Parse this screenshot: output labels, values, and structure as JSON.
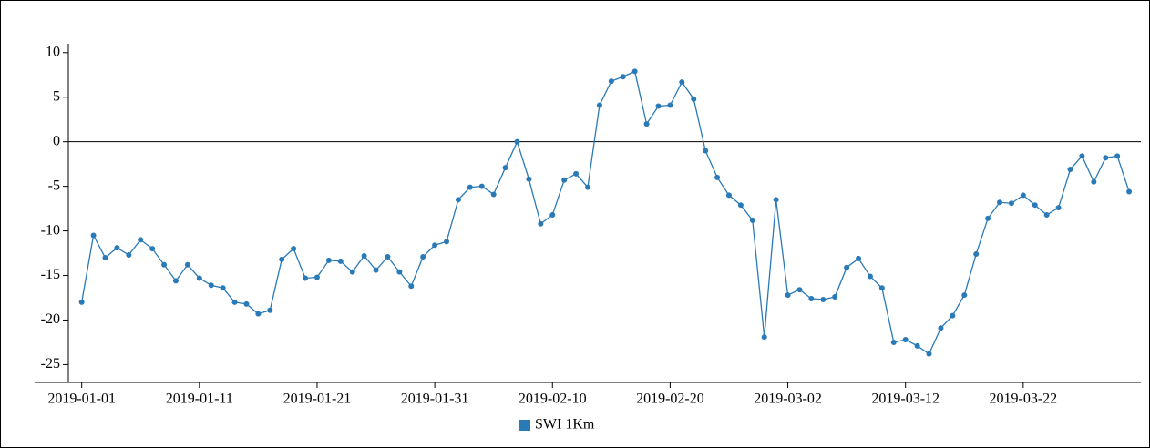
{
  "chart_data": {
    "type": "line",
    "x": [
      "2019-01-01",
      "2019-01-02",
      "2019-01-03",
      "2019-01-04",
      "2019-01-05",
      "2019-01-06",
      "2019-01-07",
      "2019-01-08",
      "2019-01-09",
      "2019-01-10",
      "2019-01-11",
      "2019-01-12",
      "2019-01-13",
      "2019-01-14",
      "2019-01-15",
      "2019-01-16",
      "2019-01-17",
      "2019-01-18",
      "2019-01-19",
      "2019-01-20",
      "2019-01-21",
      "2019-01-22",
      "2019-01-23",
      "2019-01-24",
      "2019-01-25",
      "2019-01-26",
      "2019-01-27",
      "2019-01-28",
      "2019-01-29",
      "2019-01-30",
      "2019-01-31",
      "2019-02-01",
      "2019-02-02",
      "2019-02-03",
      "2019-02-04",
      "2019-02-05",
      "2019-02-06",
      "2019-02-07",
      "2019-02-08",
      "2019-02-09",
      "2019-02-10",
      "2019-02-11",
      "2019-02-12",
      "2019-02-13",
      "2019-02-14",
      "2019-02-15",
      "2019-02-16",
      "2019-02-17",
      "2019-02-18",
      "2019-02-19",
      "2019-02-20",
      "2019-02-21",
      "2019-02-22",
      "2019-02-23",
      "2019-02-24",
      "2019-02-25",
      "2019-02-26",
      "2019-02-27",
      "2019-02-28",
      "2019-03-01",
      "2019-03-02",
      "2019-03-03",
      "2019-03-04",
      "2019-03-05",
      "2019-03-06",
      "2019-03-07",
      "2019-03-08",
      "2019-03-09",
      "2019-03-10",
      "2019-03-11",
      "2019-03-12",
      "2019-03-13",
      "2019-03-14",
      "2019-03-15",
      "2019-03-16",
      "2019-03-17",
      "2019-03-18",
      "2019-03-19",
      "2019-03-20",
      "2019-03-21",
      "2019-03-22",
      "2019-03-23",
      "2019-03-24",
      "2019-03-25",
      "2019-03-26",
      "2019-03-27",
      "2019-03-28",
      "2019-03-29",
      "2019-03-30",
      "2019-03-31"
    ],
    "series": [
      {
        "name": "SWI 1Km",
        "color": "#2a7ab8",
        "values": [
          -18,
          -10.5,
          -13,
          -11.9,
          -12.7,
          -11,
          -12,
          -13.8,
          -15.6,
          -13.8,
          -15.3,
          -16.1,
          -16.4,
          -18,
          -18.2,
          -19.3,
          -18.9,
          -13.2,
          -12,
          -15.3,
          -15.2,
          -13.3,
          -13.4,
          -14.6,
          -12.8,
          -14.4,
          -12.9,
          -14.6,
          -16.2,
          -12.9,
          -11.6,
          -11.2,
          -6.5,
          -5.1,
          -5,
          -5.9,
          -2.9,
          0,
          -4.2,
          -9.2,
          -8.2,
          -4.3,
          -3.6,
          -5.1,
          4.1,
          6.8,
          7.3,
          7.9,
          2,
          4,
          4.1,
          6.7,
          4.8,
          -1,
          -4,
          -6,
          -7.1,
          -8.8,
          -21.9,
          -6.5,
          -17.2,
          -16.6,
          -17.6,
          -17.7,
          -17.4,
          -14.1,
          -13.1,
          -15.1,
          -16.4,
          -22.5,
          -22.2,
          -22.9,
          -23.8,
          -20.9,
          -19.5,
          -17.2,
          -12.6,
          -8.6,
          -6.8,
          -6.9,
          -6,
          -7.1,
          -8.2,
          -7.4,
          -3.1,
          -1.6,
          -4.5,
          -1.8,
          -1.6,
          -5.6
        ]
      }
    ],
    "xlim": [
      "2018-12-28",
      "2019-04-01"
    ],
    "xticks": [
      "2019-01-01",
      "2019-01-11",
      "2019-01-21",
      "2019-01-31",
      "2019-02-10",
      "2019-02-20",
      "2019-03-02",
      "2019-03-12",
      "2019-03-22"
    ],
    "ylim": [
      -27,
      11
    ],
    "yticks": [
      -25,
      -20,
      -15,
      -10,
      -5,
      0,
      5,
      10
    ],
    "zero_line": true,
    "legend": "bottom"
  }
}
